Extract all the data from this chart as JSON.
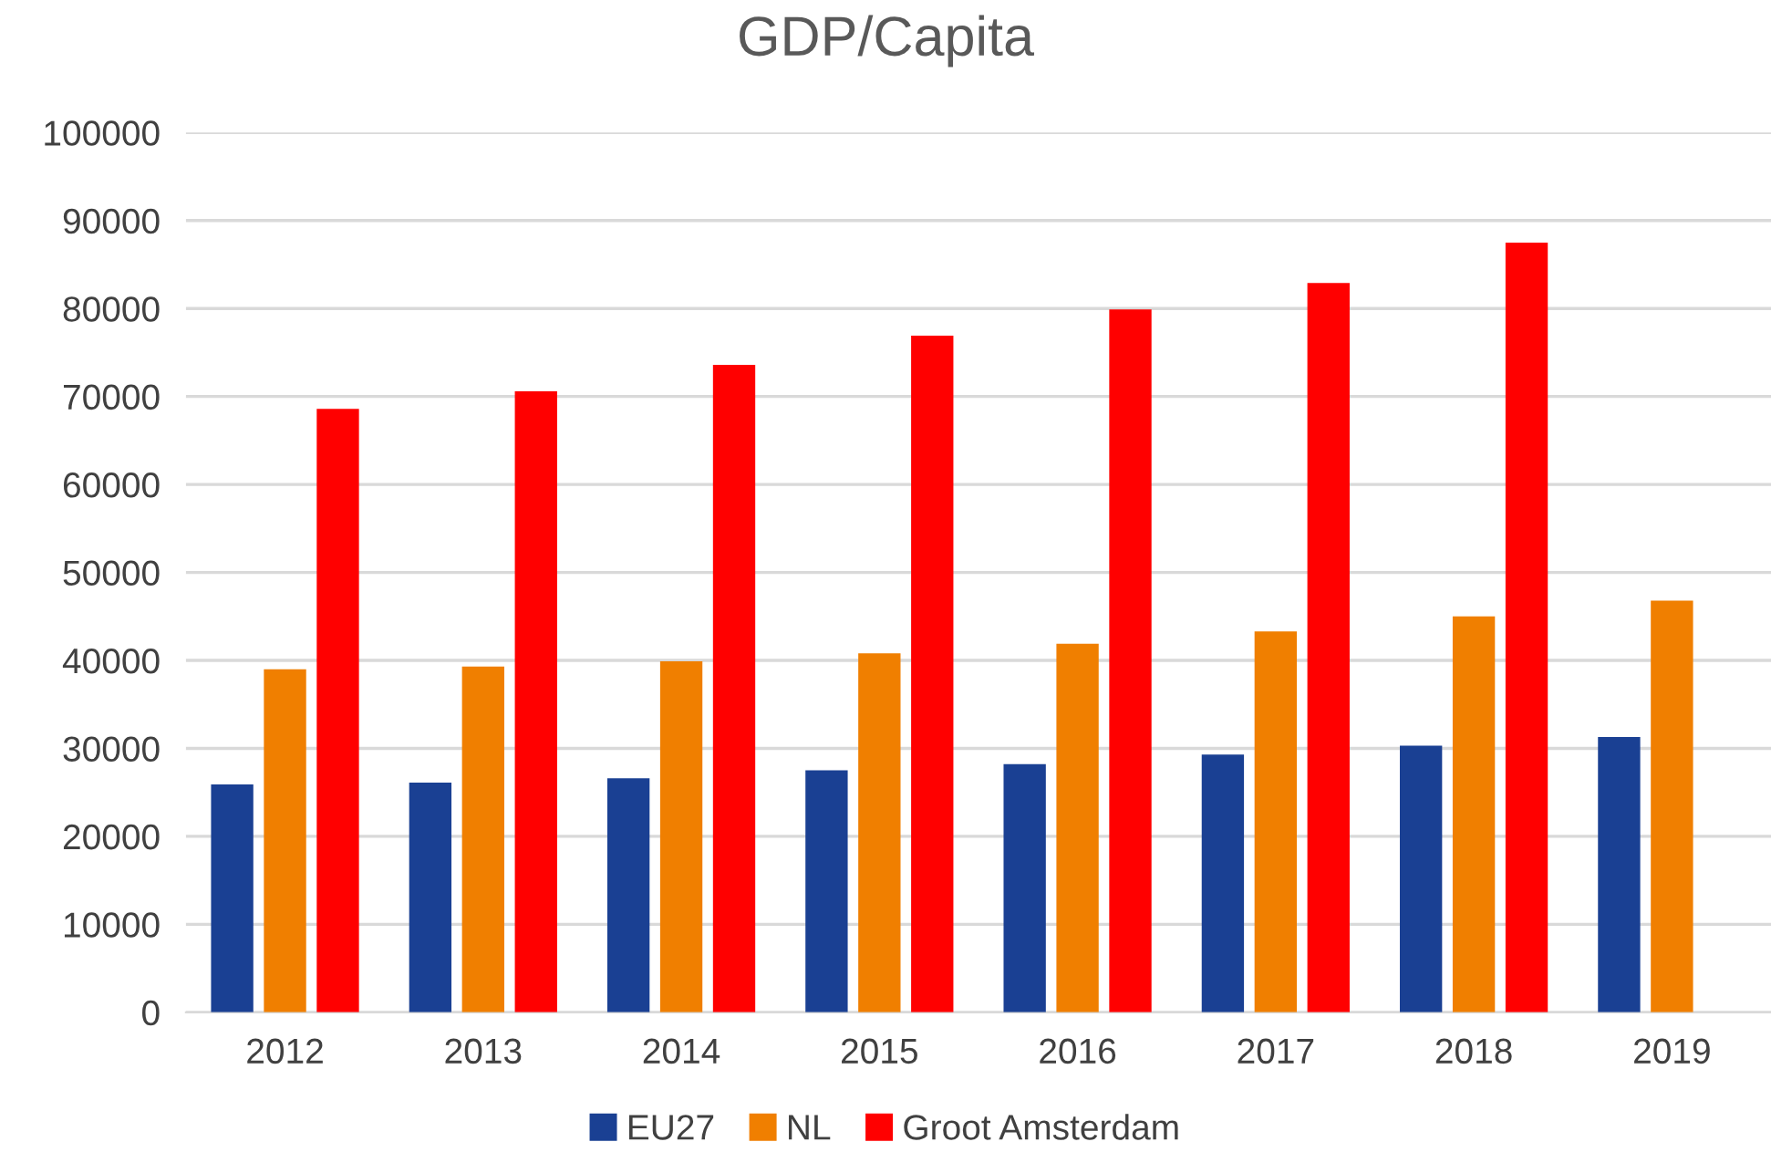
{
  "chart_data": {
    "type": "bar",
    "title": "GDP/Capita",
    "categories": [
      "2012",
      "2013",
      "2014",
      "2015",
      "2016",
      "2017",
      "2018",
      "2019"
    ],
    "series": [
      {
        "name": "EU27",
        "color": "#1a4093",
        "values": [
          25900,
          26100,
          26600,
          27500,
          28200,
          29300,
          30300,
          31300
        ]
      },
      {
        "name": "NL",
        "color": "#f07f00",
        "values": [
          39000,
          39300,
          39900,
          40800,
          41900,
          43300,
          45000,
          46800
        ]
      },
      {
        "name": "Groot Amsterdam",
        "color": "#ff0000",
        "values": [
          68600,
          70600,
          73600,
          76900,
          79900,
          82900,
          87500,
          null
        ]
      }
    ],
    "ylim": [
      0,
      100000
    ],
    "yticks": [
      0,
      10000,
      20000,
      30000,
      40000,
      50000,
      60000,
      70000,
      80000,
      90000,
      100000
    ],
    "grid": "y",
    "legend": "bottom"
  }
}
